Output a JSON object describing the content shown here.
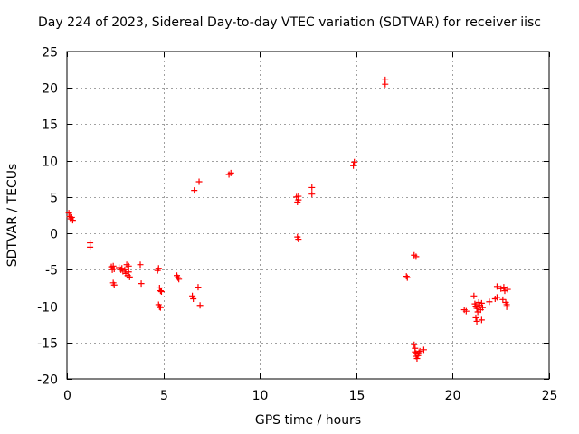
{
  "chart_data": {
    "type": "scatter",
    "title": "Day 224 of 2023, Sidereal Day-to-day VTEC variation (SDTVAR) for receiver iisc",
    "xlabel": "GPS time / hours",
    "ylabel": "SDTVAR / TECUs",
    "xlim": [
      0,
      25
    ],
    "ylim": [
      -20,
      25
    ],
    "xticks": [
      0,
      5,
      10,
      15,
      20,
      25
    ],
    "yticks": [
      -20,
      -15,
      -10,
      -5,
      0,
      5,
      10,
      15,
      20,
      25
    ],
    "grid": true,
    "marker": "+",
    "color": "#ff0000",
    "series": [
      {
        "name": "SDTVAR",
        "points": [
          [
            0.1,
            2.8
          ],
          [
            0.15,
            2.3
          ],
          [
            0.2,
            2.0
          ],
          [
            0.25,
            2.2
          ],
          [
            0.3,
            1.8
          ],
          [
            1.2,
            -1.3
          ],
          [
            1.2,
            -1.9
          ],
          [
            2.3,
            -4.6
          ],
          [
            2.35,
            -5.0
          ],
          [
            2.4,
            -4.5
          ],
          [
            2.45,
            -4.9
          ],
          [
            2.4,
            -6.8
          ],
          [
            2.45,
            -7.1
          ],
          [
            2.7,
            -4.7
          ],
          [
            2.8,
            -5.0
          ],
          [
            2.85,
            -4.8
          ],
          [
            2.9,
            -5.2
          ],
          [
            3.0,
            -5.0
          ],
          [
            3.05,
            -5.5
          ],
          [
            3.1,
            -4.3
          ],
          [
            3.15,
            -5.8
          ],
          [
            3.2,
            -5.3
          ],
          [
            3.25,
            -6.0
          ],
          [
            3.2,
            -4.5
          ],
          [
            3.8,
            -4.3
          ],
          [
            3.85,
            -6.9
          ],
          [
            4.7,
            -5.1
          ],
          [
            4.75,
            -4.8
          ],
          [
            4.8,
            -7.5
          ],
          [
            4.85,
            -7.9
          ],
          [
            4.9,
            -8.0
          ],
          [
            4.75,
            -9.8
          ],
          [
            4.8,
            -10.1
          ],
          [
            4.85,
            -10.2
          ],
          [
            5.7,
            -5.8
          ],
          [
            5.75,
            -6.1
          ],
          [
            5.8,
            -6.3
          ],
          [
            6.5,
            -8.6
          ],
          [
            6.55,
            -9.0
          ],
          [
            6.6,
            5.9
          ],
          [
            6.8,
            -7.4
          ],
          [
            6.85,
            7.1
          ],
          [
            6.9,
            -9.9
          ],
          [
            8.4,
            8.1
          ],
          [
            8.5,
            8.3
          ],
          [
            11.9,
            5.0
          ],
          [
            11.95,
            4.3
          ],
          [
            12.0,
            4.6
          ],
          [
            12.0,
            5.1
          ],
          [
            11.95,
            -0.5
          ],
          [
            12.0,
            -0.8
          ],
          [
            12.7,
            6.3
          ],
          [
            12.7,
            5.4
          ],
          [
            14.85,
            9.3
          ],
          [
            14.9,
            9.8
          ],
          [
            16.5,
            20.5
          ],
          [
            16.5,
            21.1
          ],
          [
            17.6,
            -5.9
          ],
          [
            17.65,
            -6.1
          ],
          [
            18.0,
            -3.0
          ],
          [
            18.1,
            -3.2
          ],
          [
            18.0,
            -15.3
          ],
          [
            18.05,
            -15.8
          ],
          [
            18.05,
            -16.3
          ],
          [
            18.1,
            -16.5
          ],
          [
            18.1,
            -16.9
          ],
          [
            18.15,
            -17.2
          ],
          [
            18.2,
            -16.8
          ],
          [
            18.25,
            -16.4
          ],
          [
            18.3,
            -16.2
          ],
          [
            18.5,
            -16.0
          ],
          [
            20.6,
            -10.5
          ],
          [
            20.7,
            -10.7
          ],
          [
            21.1,
            -8.6
          ],
          [
            21.15,
            -9.7
          ],
          [
            21.2,
            -10.0
          ],
          [
            21.2,
            -11.6
          ],
          [
            21.25,
            -12.1
          ],
          [
            21.25,
            -10.3
          ],
          [
            21.3,
            -10.8
          ],
          [
            21.35,
            -9.5
          ],
          [
            21.4,
            -9.9
          ],
          [
            21.45,
            -10.5
          ],
          [
            21.5,
            -11.9
          ],
          [
            21.5,
            -9.6
          ],
          [
            21.55,
            -10.2
          ],
          [
            21.9,
            -9.4
          ],
          [
            22.2,
            -9.0
          ],
          [
            22.3,
            -8.8
          ],
          [
            22.3,
            -7.3
          ],
          [
            22.5,
            -7.6
          ],
          [
            22.6,
            -9.1
          ],
          [
            22.65,
            -7.4
          ],
          [
            22.7,
            -7.9
          ],
          [
            22.75,
            -9.5
          ],
          [
            22.8,
            -9.8
          ],
          [
            22.8,
            -10.1
          ],
          [
            22.85,
            -7.7
          ]
        ]
      }
    ]
  }
}
